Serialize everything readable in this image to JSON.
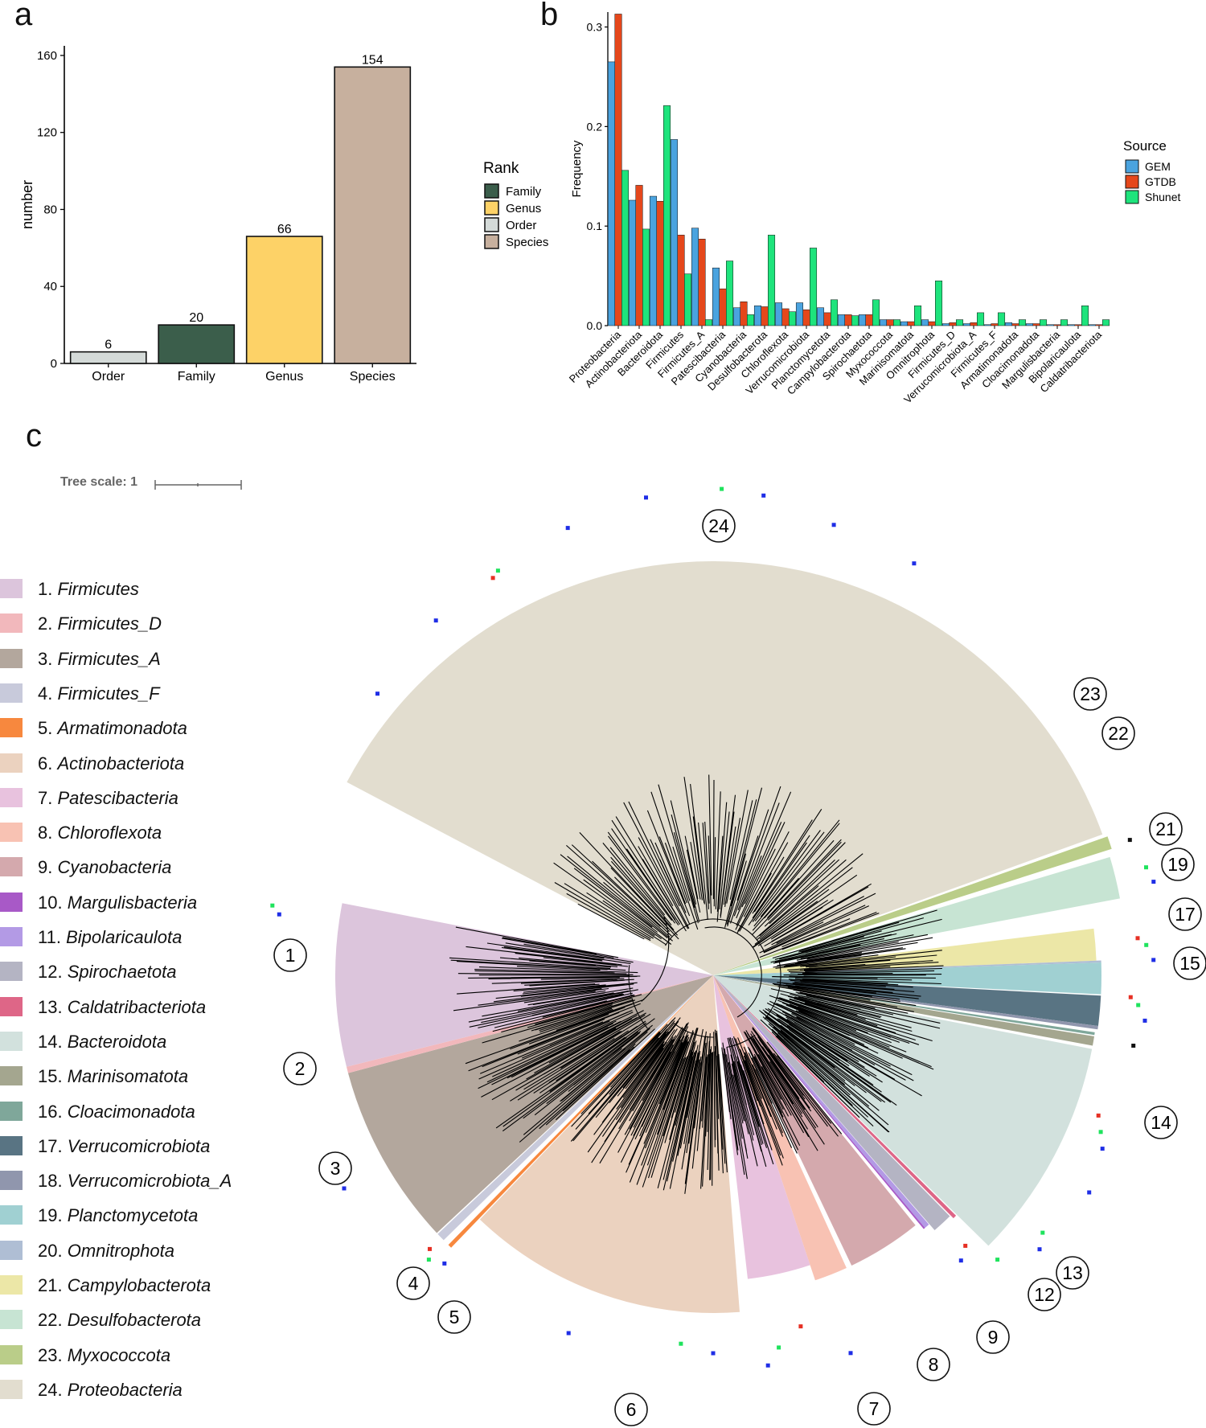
{
  "panels": {
    "a": "a",
    "b": "b",
    "c": "c"
  },
  "chart_data": [
    {
      "type": "bar",
      "title": "",
      "xlabel": "",
      "ylabel": "number",
      "ylim": [
        0,
        165
      ],
      "yticks": [
        0,
        40,
        80,
        120,
        160
      ],
      "categories": [
        "Order",
        "Family",
        "Genus",
        "Species"
      ],
      "values": [
        6,
        20,
        66,
        154
      ],
      "value_labels": [
        "6",
        "20",
        "66",
        "154"
      ],
      "bar_colors": [
        "#d4dad8",
        "#3b5e4b",
        "#fdd267",
        "#c7b09e"
      ],
      "legend": {
        "title": "Rank",
        "placement": "right",
        "entries": [
          {
            "label": "Family",
            "color": "#3b5e4b"
          },
          {
            "label": "Genus",
            "color": "#fdd267"
          },
          {
            "label": "Order",
            "color": "#d4dad8"
          },
          {
            "label": "Species",
            "color": "#c7b09e"
          }
        ]
      }
    },
    {
      "type": "bar",
      "title": "",
      "xlabel": "",
      "ylabel": "Frequency",
      "ylim": [
        0,
        0.315
      ],
      "yticks": [
        0.0,
        0.1,
        0.2,
        0.3
      ],
      "ytick_labels": [
        "0.0",
        "0.1",
        "0.2",
        "0.3"
      ],
      "categories": [
        "Proteobacteria",
        "Actinobacteriota",
        "Bacteroidota",
        "Firmicutes",
        "Firmicutes_A",
        "Patescibacteria",
        "Cyanobacteria",
        "Desulfobacterota",
        "Chloroflexota",
        "Verrucomicrobiota",
        "Planctomycetota",
        "Campylobacterota",
        "Spirochaetota",
        "Myxococcota",
        "Marinisomatota",
        "Omnitrophota",
        "Firmicutes_D",
        "Verrucomicrobiota_A",
        "Firmicutes_F",
        "Armatimonadota",
        "Cloacimonadota",
        "Margulisbacteria",
        "Bipolaricaulota",
        "Caldatribacteriota"
      ],
      "series": [
        {
          "name": "GEM",
          "color": "#4aa3df",
          "values": [
            0.265,
            0.126,
            0.13,
            0.187,
            0.098,
            0.058,
            0.018,
            0.02,
            0.023,
            0.023,
            0.018,
            0.011,
            0.011,
            0.006,
            0.004,
            0.006,
            0.002,
            0.002,
            0.001,
            0.003,
            0.002,
            0.001,
            0.001,
            0.001
          ]
        },
        {
          "name": "GTDB",
          "color": "#e5471b",
          "values": [
            0.313,
            0.141,
            0.125,
            0.091,
            0.087,
            0.037,
            0.024,
            0.019,
            0.017,
            0.016,
            0.013,
            0.011,
            0.011,
            0.006,
            0.004,
            0.004,
            0.003,
            0.003,
            0.002,
            0.002,
            0.002,
            0.001,
            0.001,
            0.001
          ]
        },
        {
          "name": "Shunet",
          "color": "#1ee47c",
          "values": [
            0.156,
            0.097,
            0.221,
            0.052,
            0.006,
            0.065,
            0.011,
            0.091,
            0.014,
            0.078,
            0.026,
            0.01,
            0.026,
            0.006,
            0.02,
            0.045,
            0.006,
            0.013,
            0.013,
            0.006,
            0.006,
            0.006,
            0.02,
            0.006
          ]
        }
      ],
      "legend": {
        "title": "Source",
        "placement": "right"
      }
    },
    {
      "type": "tree",
      "tree_scale_label": "Tree scale: 1",
      "clades": [
        {
          "num": 1,
          "name": "Firmicutes",
          "color": "#dcc5dc"
        },
        {
          "num": 2,
          "name": "Firmicutes_D",
          "color": "#f2b8bc"
        },
        {
          "num": 3,
          "name": "Firmicutes_A",
          "color": "#b3a79d"
        },
        {
          "num": 4,
          "name": "Firmicutes_F",
          "color": "#c8cadb"
        },
        {
          "num": 5,
          "name": "Armatimonadota",
          "color": "#f7883e"
        },
        {
          "num": 6,
          "name": "Actinobacteriota",
          "color": "#ebd2bf"
        },
        {
          "num": 7,
          "name": "Patescibacteria",
          "color": "#e8c2de"
        },
        {
          "num": 8,
          "name": "Chloroflexota",
          "color": "#f8c2b3"
        },
        {
          "num": 9,
          "name": "Cyanobacteria",
          "color": "#d4a9ad"
        },
        {
          "num": 10,
          "name": "Margulisbacteria",
          "color": "#a859c7"
        },
        {
          "num": 11,
          "name": "Bipolaricaulota",
          "color": "#b39ae5"
        },
        {
          "num": 12,
          "name": "Spirochaetota",
          "color": "#b4b4c3"
        },
        {
          "num": 13,
          "name": "Caldatribacteriota",
          "color": "#de6687"
        },
        {
          "num": 14,
          "name": "Bacteroidota",
          "color": "#d2e1dd"
        },
        {
          "num": 15,
          "name": "Marinisomatota",
          "color": "#a4a68f"
        },
        {
          "num": 16,
          "name": "Cloacimonadota",
          "color": "#7fa79a"
        },
        {
          "num": 17,
          "name": "Verrucomicrobiota",
          "color": "#597483"
        },
        {
          "num": 18,
          "name": "Verrucomicrobiota_A",
          "color": "#9096ad"
        },
        {
          "num": 19,
          "name": "Planctomycetota",
          "color": "#a0d0d2"
        },
        {
          "num": 20,
          "name": "Omnitrophota",
          "color": "#afbed4"
        },
        {
          "num": 21,
          "name": "Campylobacterota",
          "color": "#ece7a7"
        },
        {
          "num": 22,
          "name": "Desulfobacterota",
          "color": "#c7e4d3"
        },
        {
          "num": 23,
          "name": "Myxococcota",
          "color": "#bacd89"
        },
        {
          "num": 24,
          "name": "Proteobacteria",
          "color": "#e2ddcf"
        }
      ],
      "circled_labels": [
        "24",
        "23",
        "22",
        "21",
        "19",
        "17",
        "15",
        "14",
        "13",
        "12",
        "9",
        "8",
        "7",
        "6",
        "5",
        "4",
        "3",
        "2",
        "1"
      ],
      "marker_colors": {
        "GEM": "#1f2ee6",
        "GTDB": "#e63024",
        "Shunet": "#1fe35d",
        "other": "#111111"
      }
    }
  ]
}
